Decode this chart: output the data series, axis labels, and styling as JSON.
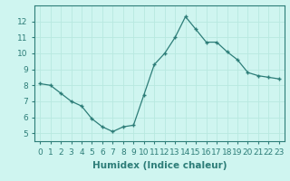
{
  "x": [
    0,
    1,
    2,
    3,
    4,
    5,
    6,
    7,
    8,
    9,
    10,
    11,
    12,
    13,
    14,
    15,
    16,
    17,
    18,
    19,
    20,
    21,
    22,
    23
  ],
  "y": [
    8.1,
    8.0,
    7.5,
    7.0,
    6.7,
    5.9,
    5.4,
    5.1,
    5.4,
    5.5,
    7.4,
    9.3,
    10.0,
    11.0,
    12.3,
    11.5,
    10.7,
    10.7,
    10.1,
    9.6,
    8.8,
    8.6,
    8.5,
    8.4
  ],
  "xlabel": "Humidex (Indice chaleur)",
  "ylim": [
    4.5,
    13.0
  ],
  "xlim": [
    -0.5,
    23.5
  ],
  "yticks": [
    5,
    6,
    7,
    8,
    9,
    10,
    11,
    12
  ],
  "xticks": [
    0,
    1,
    2,
    3,
    4,
    5,
    6,
    7,
    8,
    9,
    10,
    11,
    12,
    13,
    14,
    15,
    16,
    17,
    18,
    19,
    20,
    21,
    22,
    23
  ],
  "xtick_labels": [
    "0",
    "1",
    "2",
    "3",
    "4",
    "5",
    "6",
    "7",
    "8",
    "9",
    "10",
    "11",
    "12",
    "13",
    "14",
    "15",
    "16",
    "17",
    "18",
    "19",
    "20",
    "21",
    "22",
    "23"
  ],
  "line_color": "#2d7d78",
  "marker_color": "#2d7d78",
  "bg_color": "#cff5f0",
  "grid_color": "#b8e8e0",
  "font_color": "#2d7d78",
  "xlabel_fontsize": 7.5,
  "tick_fontsize": 6.5
}
